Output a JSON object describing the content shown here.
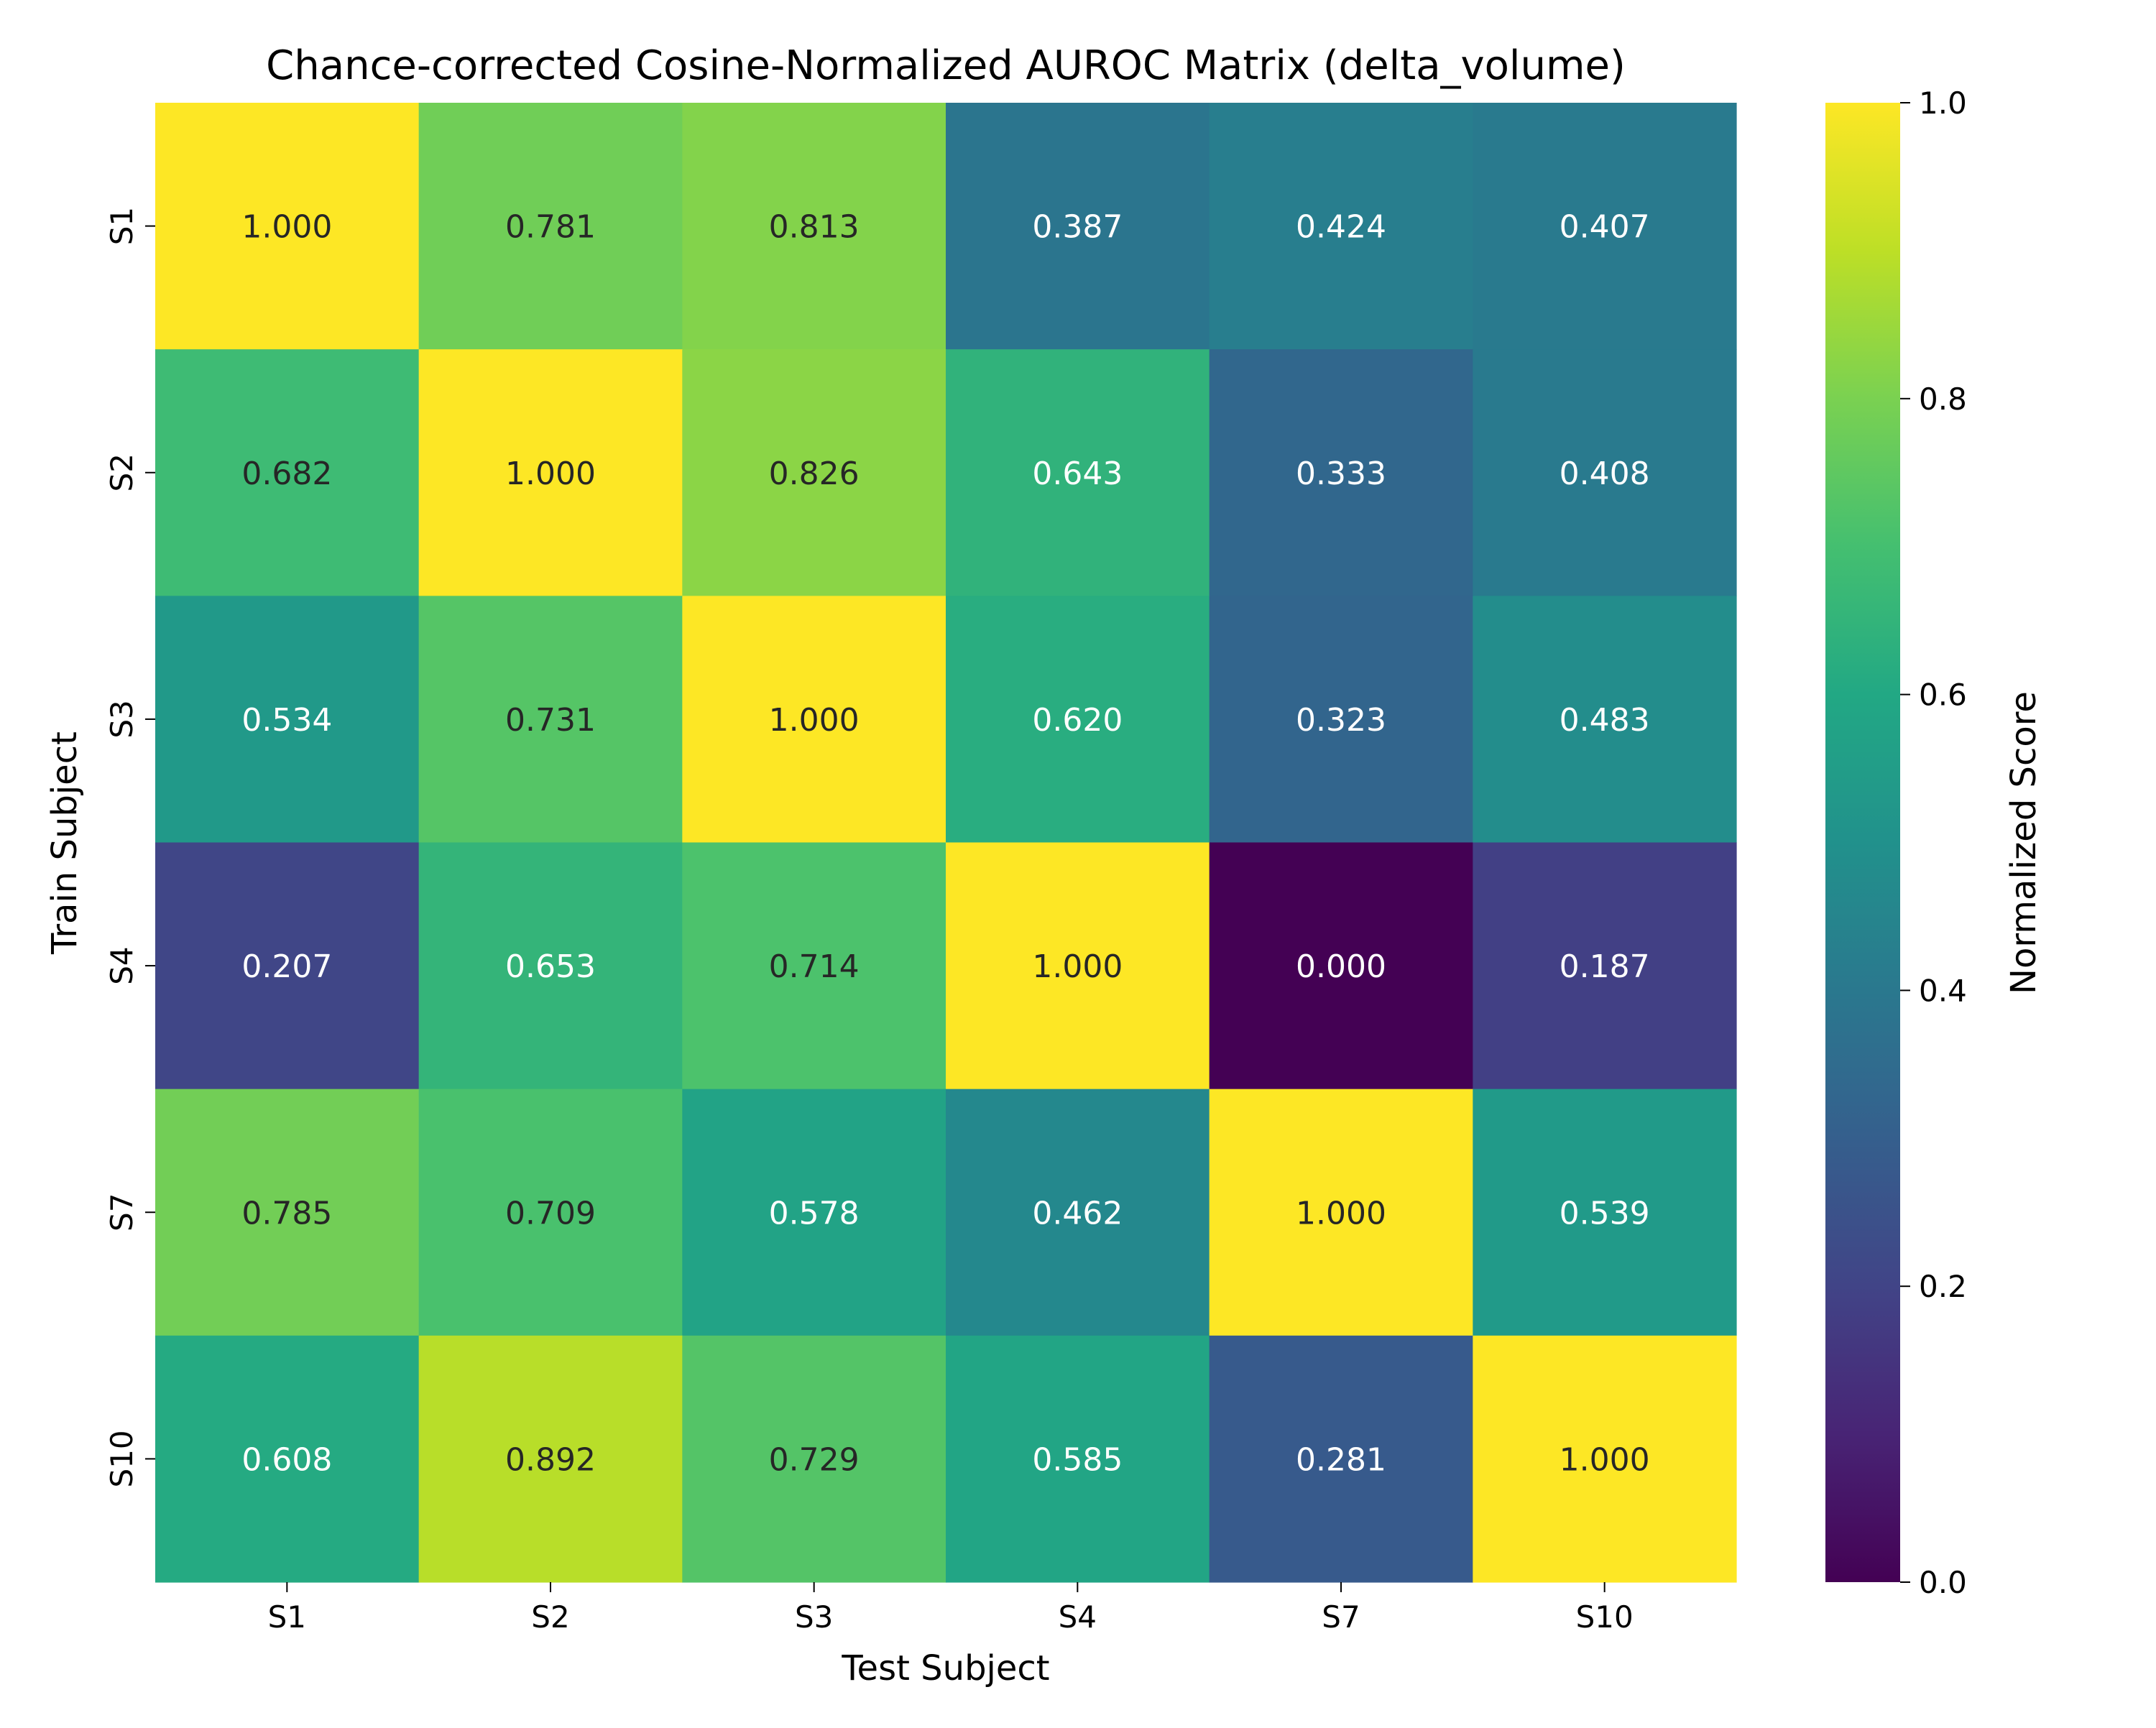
{
  "chart_data": {
    "type": "heatmap",
    "title": "Chance-corrected Cosine-Normalized AUROC Matrix (delta_volume)",
    "xlabel": "Test Subject",
    "ylabel": "Train Subject",
    "x_categories": [
      "S1",
      "S2",
      "S3",
      "S4",
      "S7",
      "S10"
    ],
    "y_categories": [
      "S1",
      "S2",
      "S3",
      "S4",
      "S7",
      "S10"
    ],
    "values": [
      [
        1.0,
        0.781,
        0.813,
        0.387,
        0.424,
        0.407
      ],
      [
        0.682,
        1.0,
        0.826,
        0.643,
        0.333,
        0.408
      ],
      [
        0.534,
        0.731,
        1.0,
        0.62,
        0.323,
        0.483
      ],
      [
        0.207,
        0.653,
        0.714,
        1.0,
        0.0,
        0.187
      ],
      [
        0.785,
        0.709,
        0.578,
        0.462,
        1.0,
        0.539
      ],
      [
        0.608,
        0.892,
        0.729,
        0.585,
        0.281,
        1.0
      ]
    ],
    "value_format": "0.000",
    "colormap": "viridis",
    "vmin": 0.0,
    "vmax": 1.0,
    "colorbar": {
      "label": "Normalized Score",
      "ticks": [
        0.0,
        0.2,
        0.4,
        0.6,
        0.8,
        1.0
      ],
      "tick_labels": [
        "0.0",
        "0.2",
        "0.4",
        "0.6",
        "0.8",
        "1.0"
      ]
    },
    "grid": false,
    "legend": "none"
  }
}
